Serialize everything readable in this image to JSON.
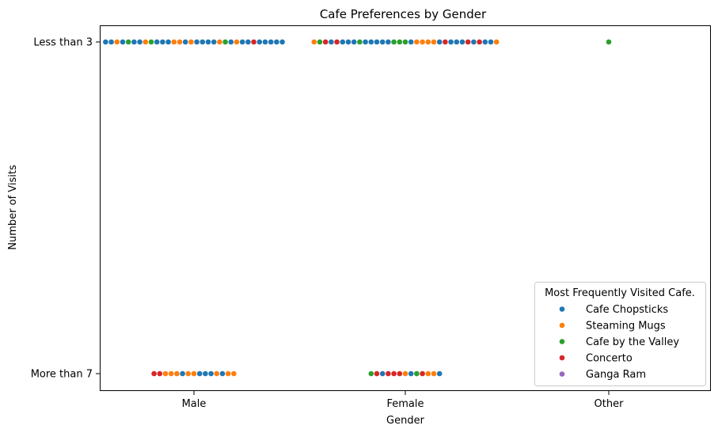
{
  "chart_data": {
    "type": "scatter",
    "subtype": "swarm",
    "title": "Cafe Preferences by Gender",
    "xlabel": "Gender",
    "ylabel": "Number of Visits",
    "categories": [
      "Male",
      "Female",
      "Other"
    ],
    "y_categories": [
      "Less than 3",
      "More than 7"
    ],
    "grid": false,
    "legend": {
      "title": "Most Frequently Visited Cafe.",
      "placement": "lower right",
      "entries": [
        {
          "name": "Cafe Chopsticks",
          "color": "#1f77b4"
        },
        {
          "name": "Steaming Mugs",
          "color": "#ff7f0e"
        },
        {
          "name": "Cafe by the Valley",
          "color": "#2ca02c"
        },
        {
          "name": "Concerto",
          "color": "#d62728"
        },
        {
          "name": "Ganga Ram",
          "color": "#9467bd"
        }
      ]
    },
    "groups": [
      {
        "gender": "Male",
        "visits": "Less than 3",
        "points": [
          "Cafe Chopsticks",
          "Cafe Chopsticks",
          "Steaming Mugs",
          "Cafe Chopsticks",
          "Cafe by the Valley",
          "Cafe Chopsticks",
          "Cafe Chopsticks",
          "Steaming Mugs",
          "Cafe by the Valley",
          "Cafe Chopsticks",
          "Cafe Chopsticks",
          "Cafe Chopsticks",
          "Steaming Mugs",
          "Steaming Mugs",
          "Cafe Chopsticks",
          "Steaming Mugs",
          "Cafe Chopsticks",
          "Cafe Chopsticks",
          "Cafe Chopsticks",
          "Cafe Chopsticks",
          "Steaming Mugs",
          "Cafe by the Valley",
          "Cafe Chopsticks",
          "Steaming Mugs",
          "Cafe Chopsticks",
          "Cafe Chopsticks",
          "Concerto",
          "Cafe Chopsticks",
          "Cafe Chopsticks",
          "Cafe Chopsticks",
          "Cafe Chopsticks",
          "Cafe Chopsticks"
        ]
      },
      {
        "gender": "Female",
        "visits": "Less than 3",
        "points": [
          "Steaming Mugs",
          "Cafe by the Valley",
          "Concerto",
          "Cafe Chopsticks",
          "Concerto",
          "Cafe Chopsticks",
          "Cafe Chopsticks",
          "Cafe Chopsticks",
          "Cafe by the Valley",
          "Cafe Chopsticks",
          "Cafe Chopsticks",
          "Cafe Chopsticks",
          "Cafe Chopsticks",
          "Cafe Chopsticks",
          "Cafe by the Valley",
          "Cafe by the Valley",
          "Cafe by the Valley",
          "Cafe Chopsticks",
          "Steaming Mugs",
          "Steaming Mugs",
          "Steaming Mugs",
          "Steaming Mugs",
          "Cafe Chopsticks",
          "Concerto",
          "Cafe Chopsticks",
          "Cafe Chopsticks",
          "Cafe Chopsticks",
          "Concerto",
          "Cafe Chopsticks",
          "Concerto",
          "Cafe Chopsticks",
          "Cafe Chopsticks",
          "Steaming Mugs"
        ]
      },
      {
        "gender": "Other",
        "visits": "Less than 3",
        "points": [
          "Cafe by the Valley"
        ]
      },
      {
        "gender": "Male",
        "visits": "More than 7",
        "points": [
          "Concerto",
          "Concerto",
          "Steaming Mugs",
          "Steaming Mugs",
          "Steaming Mugs",
          "Cafe Chopsticks",
          "Steaming Mugs",
          "Steaming Mugs",
          "Cafe Chopsticks",
          "Cafe Chopsticks",
          "Cafe Chopsticks",
          "Steaming Mugs",
          "Cafe Chopsticks",
          "Steaming Mugs",
          "Steaming Mugs"
        ]
      },
      {
        "gender": "Female",
        "visits": "More than 7",
        "points": [
          "Cafe by the Valley",
          "Concerto",
          "Cafe Chopsticks",
          "Concerto",
          "Concerto",
          "Concerto",
          "Steaming Mugs",
          "Cafe Chopsticks",
          "Cafe by the Valley",
          "Concerto",
          "Steaming Mugs",
          "Steaming Mugs",
          "Cafe Chopsticks"
        ]
      }
    ]
  }
}
